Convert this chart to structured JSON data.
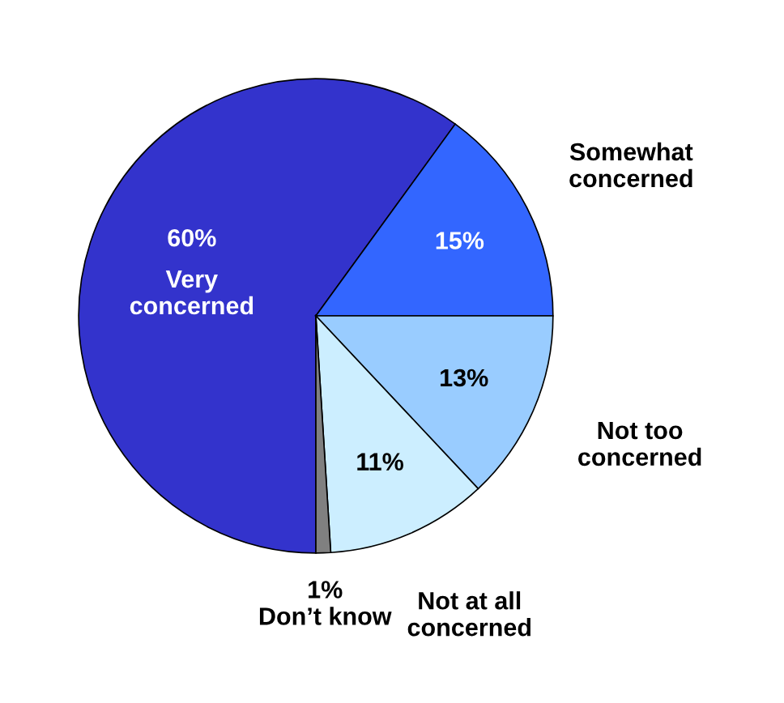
{
  "chart_data": {
    "type": "pie",
    "categories": [
      "Very\nconcerned",
      "Somewhat\nconcerned",
      "Not too\nconcerned",
      "Not at all\nconcerned",
      "Don’t know"
    ],
    "values": [
      60,
      15,
      13,
      11,
      1
    ],
    "colors": [
      "#3333cc",
      "#3366ff",
      "#99ccff",
      "#cceeff",
      "#808080"
    ],
    "value_labels": [
      "60%",
      "15%",
      "13%",
      "11%",
      "1%"
    ],
    "legend": false
  }
}
